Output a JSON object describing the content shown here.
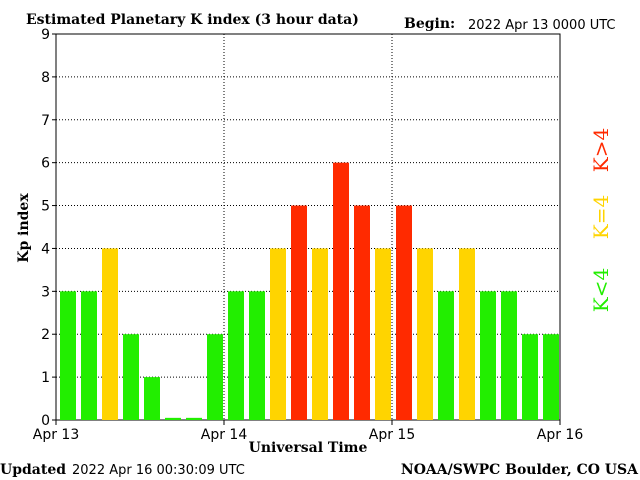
{
  "header": {
    "title": "Estimated Planetary K index (3 hour data)",
    "begin_label": "Begin:",
    "begin_value": "2022 Apr 13 0000 UTC"
  },
  "footer": {
    "updated_label": "Updated",
    "updated_value": "2022 Apr 16 00:30:09 UTC",
    "credit": "NOAA/SWPC Boulder, CO USA"
  },
  "legend": {
    "red_label": "K>4",
    "yellow_label": "K=4",
    "green_label": "K<4"
  },
  "colors": {
    "green": "#22ee00",
    "yellow": "#ffd400",
    "red": "#ff2a00"
  },
  "chart_data": {
    "type": "bar",
    "title": "Estimated Planetary K index (3 hour data)",
    "xlabel": "Universal Time",
    "ylabel": "Kp index",
    "ylim": [
      0,
      9
    ],
    "yticks": [
      "0",
      "1",
      "2",
      "3",
      "4",
      "5",
      "6",
      "7",
      "8",
      "9"
    ],
    "xticks": [
      "Apr 13",
      "Apr 14",
      "Apr 15",
      "Apr 16"
    ],
    "grid": true,
    "values": [
      3,
      3,
      4,
      2,
      1,
      0.05,
      0.05,
      2,
      3,
      3,
      4,
      5,
      4,
      6,
      5,
      4,
      5,
      4,
      3,
      4,
      3,
      3,
      2,
      2
    ]
  }
}
